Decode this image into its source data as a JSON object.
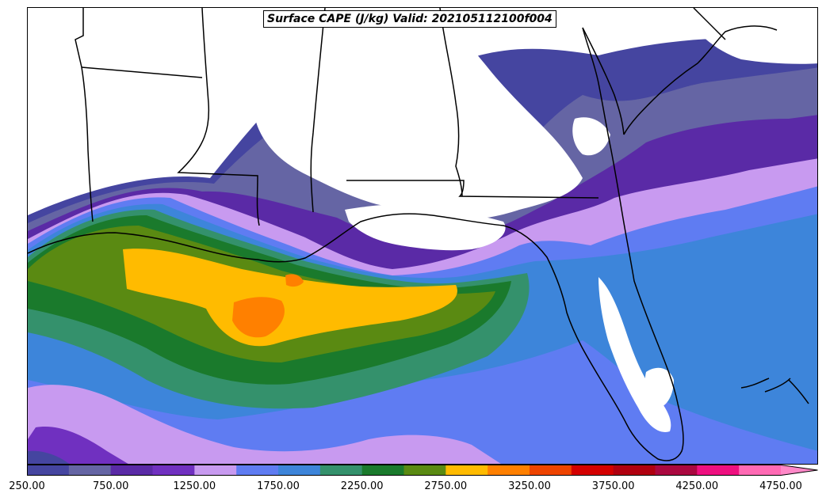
{
  "title": "Surface CAPE (J/kg) Valid: 202105112100f004",
  "colorbar": {
    "tick_labels": [
      "250.00",
      "750.00",
      "1250.00",
      "1750.00",
      "2250.00",
      "2750.00",
      "3250.00",
      "3750.00",
      "4250.00",
      "4750.00"
    ],
    "levels": [
      250,
      500,
      750,
      1000,
      1250,
      1500,
      1750,
      2000,
      2250,
      2500,
      2750,
      3000,
      3250,
      3500,
      3750,
      4000,
      4250,
      4500,
      4750
    ],
    "colors": [
      "#4545a0",
      "#6565a4",
      "#5a2aa6",
      "#7030c0",
      "#c89af0",
      "#5f7cf2",
      "#3d85da",
      "#34916c",
      "#1a7a2c",
      "#5a8a12",
      "#ffbb00",
      "#ff8000",
      "#ee4400",
      "#d40000",
      "#b00010",
      "#aa0840",
      "#ee1080",
      "#ff6ab4"
    ],
    "extend_color": "#ff88c8",
    "extend": "max"
  },
  "map": {
    "region": "Gulf of Mexico / Southeastern United States",
    "variable": "Surface CAPE",
    "units": "J/kg",
    "features": [
      "coastlines",
      "state-borders"
    ]
  }
}
